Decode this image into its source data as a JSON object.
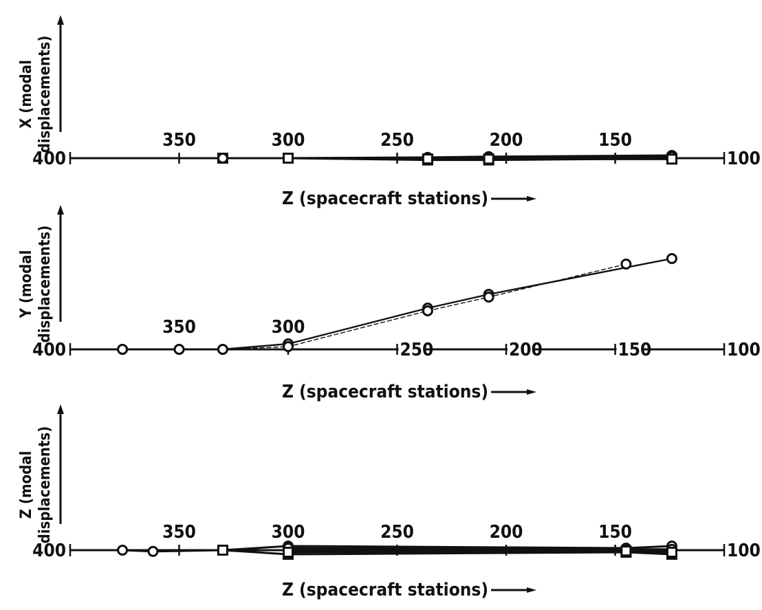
{
  "figure": {
    "colors": {
      "ink": "#111111",
      "paper": "#ffffff"
    }
  },
  "chart_data": [
    {
      "type": "line",
      "ylabel_line1": "X (modal",
      "ylabel_line2": "displacements)",
      "xlabel": "Z (spacecraft stations)",
      "xlim": [
        400,
        100
      ],
      "x_end_labels": [
        "400",
        "100"
      ],
      "x_ticks": [
        350,
        300,
        250,
        200,
        150
      ],
      "x_tick_labels": [
        "350",
        "300",
        "250",
        "200",
        "150"
      ],
      "tick_label_placement": "above",
      "series": [
        {
          "marker": "square",
          "points": [
            [
              330,
              0
            ],
            [
              300,
              0
            ],
            [
              236,
              -0.12
            ],
            [
              208,
              -0.12
            ],
            [
              124,
              -0.02
            ]
          ]
        },
        {
          "marker": "circle",
          "points": [
            [
              330,
              0
            ],
            [
              300,
              0
            ],
            [
              236,
              0.05
            ],
            [
              208,
              0.1
            ],
            [
              124,
              0.18
            ]
          ]
        },
        {
          "marker": "circle",
          "points": [
            [
              300,
              0
            ],
            [
              236,
              0.02
            ],
            [
              208,
              0.06
            ],
            [
              124,
              0.1
            ]
          ]
        },
        {
          "marker": "square",
          "points": [
            [
              300,
              0
            ],
            [
              236,
              -0.05
            ],
            [
              208,
              -0.06
            ],
            [
              124,
              -0.06
            ]
          ]
        }
      ]
    },
    {
      "type": "line",
      "ylabel_line1": "Y (modal",
      "ylabel_line2": "displacements)",
      "xlabel": "Z (spacecraft stations)",
      "xlim": [
        400,
        100
      ],
      "x_end_labels": [
        "400",
        "100"
      ],
      "x_ticks": [
        350,
        300,
        250,
        200,
        150
      ],
      "x_tick_labels": [
        "350",
        "300",
        "250",
        "200",
        "150"
      ],
      "tick_label_placement": "above 350/300, inline 250/200/150",
      "series": [
        {
          "marker": "circle",
          "points": [
            [
              376,
              0
            ],
            [
              350,
              0
            ],
            [
              330,
              0
            ],
            [
              300,
              0.1
            ],
            [
              236,
              0.75
            ],
            [
              208,
              1.0
            ],
            [
              124,
              1.65
            ]
          ]
        },
        {
          "marker": "circle",
          "points": [
            [
              376,
              0
            ],
            [
              350,
              0
            ],
            [
              330,
              0
            ],
            [
              300,
              0.05
            ],
            [
              236,
              0.7
            ],
            [
              208,
              0.95
            ],
            [
              145,
              1.55
            ]
          ]
        }
      ]
    },
    {
      "type": "line",
      "ylabel_line1": "Z (modal",
      "ylabel_line2": "displacements)",
      "xlabel": "Z (spacecraft stations)",
      "xlim": [
        400,
        100
      ],
      "x_end_labels": [
        "400",
        "100"
      ],
      "x_ticks": [
        350,
        300,
        250,
        200,
        150
      ],
      "x_tick_labels": [
        "350",
        "300",
        "250",
        "200",
        "150"
      ],
      "tick_label_placement": "above",
      "series": [
        {
          "marker": "circle",
          "points": [
            [
              376,
              0
            ],
            [
              362,
              -0.03
            ],
            [
              330,
              0
            ],
            [
              300,
              0.1
            ],
            [
              145,
              0.05
            ],
            [
              124,
              0.1
            ]
          ]
        },
        {
          "marker": "square",
          "points": [
            [
              330,
              0
            ],
            [
              300,
              -0.1
            ],
            [
              145,
              -0.05
            ],
            [
              124,
              -0.1
            ]
          ]
        },
        {
          "marker": "circle",
          "points": [
            [
              300,
              0.05
            ],
            [
              145,
              0.02
            ],
            [
              124,
              0.02
            ]
          ]
        },
        {
          "marker": "square",
          "points": [
            [
              300,
              -0.05
            ],
            [
              145,
              -0.02
            ],
            [
              124,
              -0.05
            ]
          ]
        }
      ]
    }
  ]
}
